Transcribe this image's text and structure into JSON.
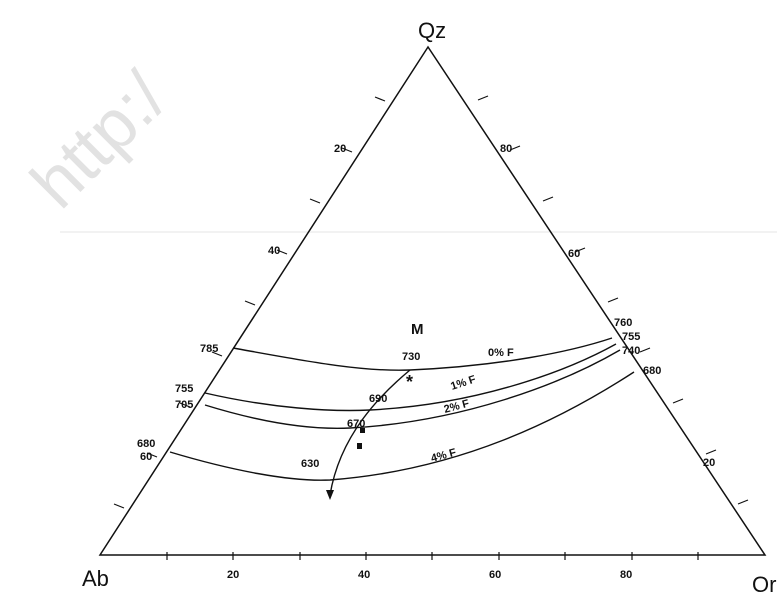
{
  "watermark": "http:/",
  "vertices": {
    "top": "Qz",
    "left": "Ab",
    "right": "Or"
  },
  "point_label": "M",
  "edge_labels": {
    "left": [
      "20",
      "40",
      "60"
    ],
    "right": [
      "80",
      "60",
      "20"
    ],
    "bottom": [
      "20",
      "40",
      "60",
      "80"
    ]
  },
  "isotherms": [
    {
      "label": "0% F"
    },
    {
      "label": "1% F"
    },
    {
      "label": "2% F"
    },
    {
      "label": "4% F"
    }
  ],
  "temperatures": [
    "785",
    "730",
    "760",
    "755",
    "740",
    "680",
    "755",
    "705",
    "690",
    "670",
    "680",
    "630"
  ]
}
